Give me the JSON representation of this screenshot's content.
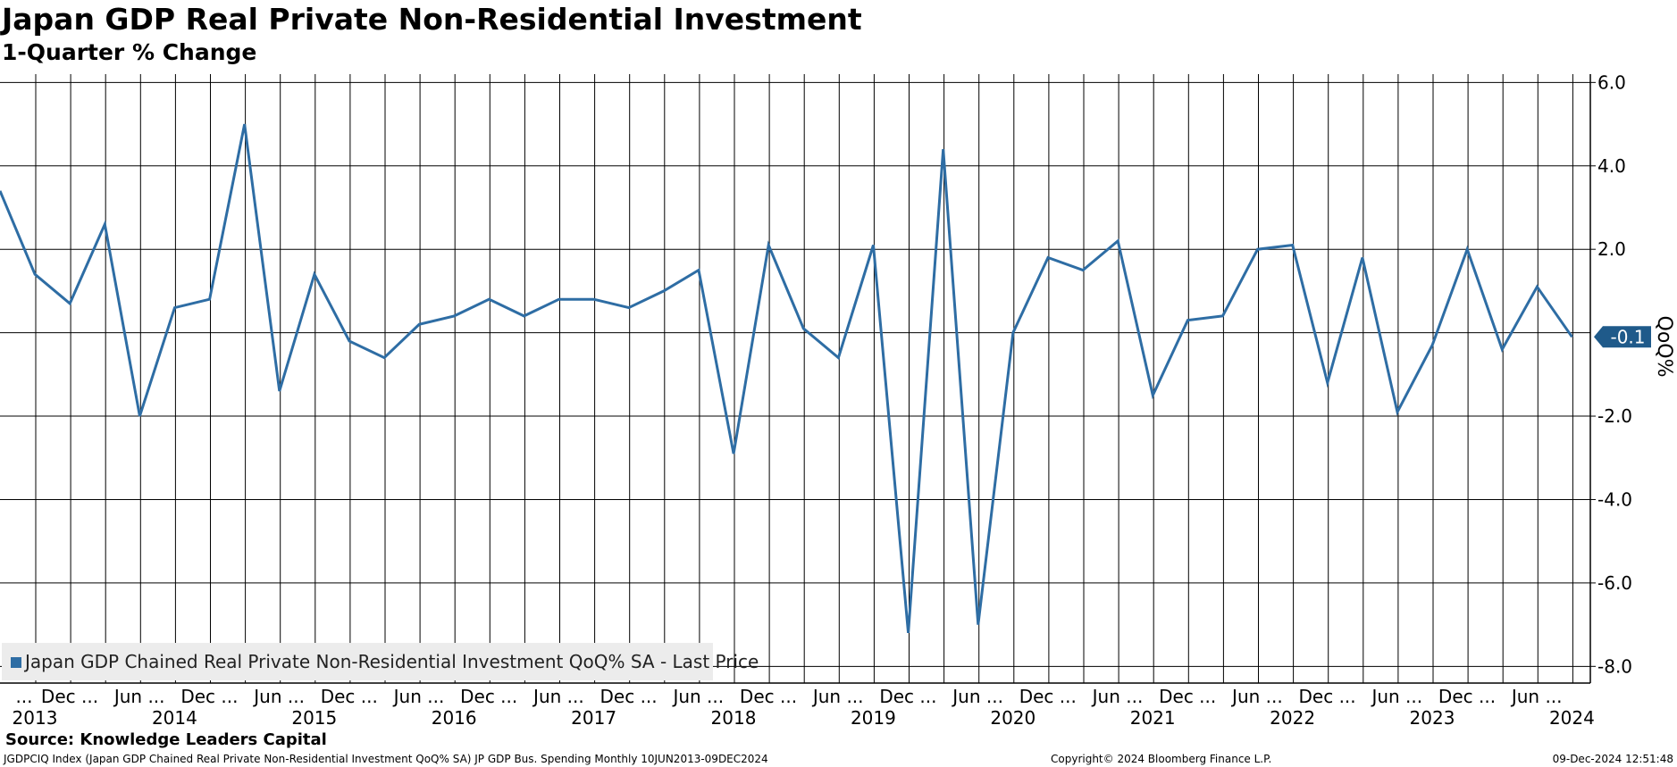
{
  "title": "Japan GDP Real Private Non-Residential Investment",
  "subtitle": "1-Quarter % Change",
  "source": "Source: Knowledge Leaders Capital",
  "footer": {
    "left": "JGDPCIQ Index (Japan GDP Chained Real Private Non-Residential Investment QoQ% SA) JP GDP Bus. Spending  Monthly 10JUN2013-09DEC2024",
    "middle": "Copyright© 2024 Bloomberg Finance L.P.",
    "right": "09-Dec-2024 12:51:48"
  },
  "chart_data": {
    "type": "line",
    "ylabel": "QoQ%",
    "ylim": [
      -8.4,
      6.2
    ],
    "y_ticks": [
      6.0,
      4.0,
      2.0,
      -2.0,
      -4.0,
      -6.0,
      -8.0
    ],
    "y_tick_labels": [
      "6.0",
      "4.0",
      "2.0",
      "-2.0",
      "-4.0",
      "-6.0",
      "-8.0"
    ],
    "x_top_labels": [
      "...",
      "Dec ...",
      "Jun ...",
      "Dec ...",
      "Jun ...",
      "Dec ...",
      "Jun ...",
      "Dec ...",
      "Jun ...",
      "Dec ...",
      "Jun ...",
      "Dec ...",
      "Jun ...",
      "Dec ...",
      "Jun ...",
      "Dec ...",
      "Jun ...",
      "Dec ...",
      "Jun ...",
      "Dec ...",
      "Jun ...",
      "Dec ...",
      "Jun ..."
    ],
    "x_year_labels": [
      "2013",
      "2014",
      "2015",
      "2016",
      "2017",
      "2018",
      "2019",
      "2020",
      "2021",
      "2022",
      "2023",
      "2024"
    ],
    "grid": true,
    "legend": "bottom-left",
    "last_value_label": "-0.1",
    "series": [
      {
        "name": "Japan GDP Chained Real Private Non-Residential Investment QoQ% SA - Last Price",
        "color": "#2e6da4",
        "values": [
          3.4,
          1.4,
          0.7,
          2.6,
          -2.0,
          0.6,
          0.8,
          5.0,
          -1.4,
          1.4,
          -0.2,
          -0.6,
          0.2,
          0.4,
          0.8,
          0.4,
          0.8,
          0.8,
          0.6,
          1.0,
          1.5,
          -2.9,
          2.1,
          0.1,
          -0.6,
          2.1,
          -7.2,
          4.4,
          -7.0,
          0.0,
          1.8,
          1.5,
          2.2,
          -1.5,
          0.3,
          0.4,
          2.0,
          2.1,
          -1.2,
          1.8,
          -1.9,
          -0.3,
          2.0,
          -0.4,
          1.1,
          -0.1
        ]
      }
    ]
  }
}
